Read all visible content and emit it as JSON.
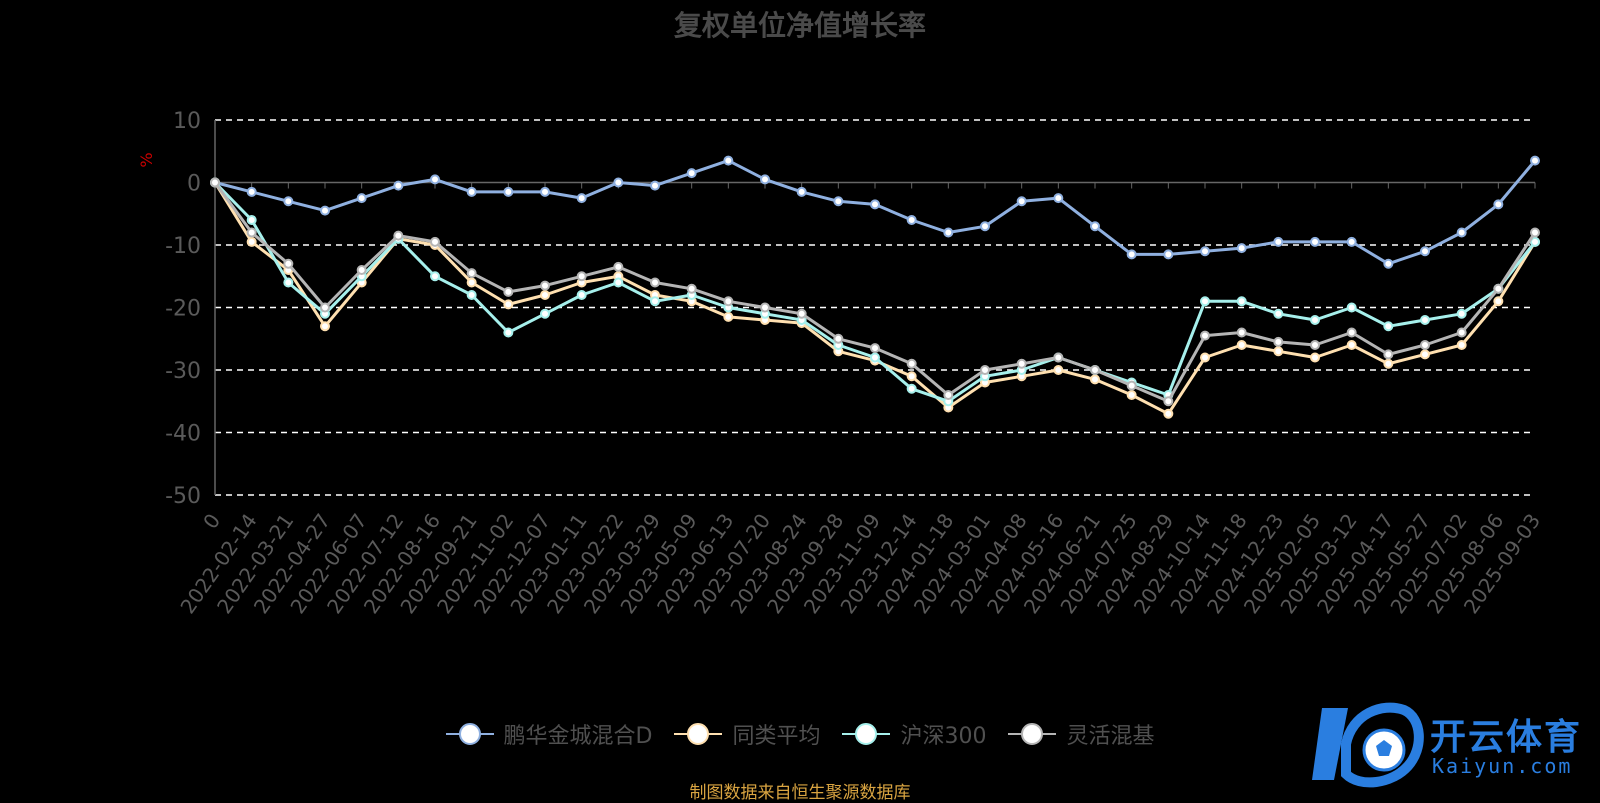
{
  "chart_data": {
    "type": "line",
    "title": "复权单位净值增长率",
    "ylabel": "%",
    "ylim": [
      -50,
      10
    ],
    "yticks": [
      10,
      0,
      -10,
      -20,
      -30,
      -40,
      -50
    ],
    "grid": true,
    "legend_position": "bottom",
    "x": [
      "0",
      "2022-02-14",
      "2022-03-21",
      "2022-04-27",
      "2022-06-07",
      "2022-07-12",
      "2022-08-16",
      "2022-09-21",
      "2022-11-02",
      "2022-12-07",
      "2023-01-11",
      "2023-02-22",
      "2023-03-29",
      "2023-05-09",
      "2023-06-13",
      "2023-07-20",
      "2023-08-24",
      "2023-09-28",
      "2023-11-09",
      "2023-12-14",
      "2024-01-18",
      "2024-03-01",
      "2024-04-08",
      "2024-05-16",
      "2024-06-21",
      "2024-07-25",
      "2024-08-29",
      "2024-10-14",
      "2024-11-18",
      "2024-12-23",
      "2025-02-05",
      "2025-03-12",
      "2025-04-17",
      "2025-05-27",
      "2025-07-02",
      "2025-08-06",
      "2025-09-03"
    ],
    "series": [
      {
        "name": "鹏华金城混合D",
        "color": "#8fb0e0",
        "values": [
          0,
          -1.5,
          -3,
          -4.5,
          -2.5,
          -0.5,
          0.5,
          -1.5,
          -1.5,
          -1.5,
          -2.5,
          0,
          -0.5,
          1.5,
          3.5,
          0.5,
          -1.5,
          -3,
          -3.5,
          -6,
          -8,
          -7,
          -3,
          -2.5,
          -7,
          -11.5,
          -11.5,
          -11,
          -10.5,
          -9.5,
          -9.5,
          -9.5,
          -13,
          -11,
          -8,
          -3.5,
          3.5
        ]
      },
      {
        "name": "同类平均",
        "color": "#ffe0b0",
        "values": [
          0,
          -9.5,
          -14,
          -23,
          -16,
          -9,
          -10,
          -16,
          -19.5,
          -18,
          -16,
          -15,
          -18,
          -19,
          -21.5,
          -22,
          -22.5,
          -27,
          -28.5,
          -31,
          -36,
          -32,
          -31,
          -30,
          -31.5,
          -34,
          -37,
          -28,
          -26,
          -27,
          -28,
          -26,
          -29,
          -27.5,
          -26,
          -19,
          -9.5
        ]
      },
      {
        "name": "沪深300",
        "color": "#a6f0ec",
        "values": [
          0,
          -6,
          -16,
          -21,
          -15,
          -9,
          -15,
          -18,
          -24,
          -21,
          -18,
          -16,
          -19,
          -18,
          -20,
          -21,
          -22,
          -26,
          -28,
          -33,
          -35,
          -31,
          -30,
          -28,
          -30,
          -32,
          -34,
          -19,
          -19,
          -21,
          -22,
          -20,
          -23,
          -22,
          -21,
          -17,
          -9.5
        ]
      },
      {
        "name": "灵活混基",
        "color": "#b5b5b5",
        "values": [
          0,
          -8,
          -13,
          -20,
          -14,
          -8.5,
          -9.5,
          -14.5,
          -17.5,
          -16.5,
          -15,
          -13.5,
          -16,
          -17,
          -19,
          -20,
          -21,
          -25,
          -26.5,
          -29,
          -34,
          -30,
          -29,
          -28,
          -30,
          -32.5,
          -35,
          -24.5,
          -24,
          -25.5,
          -26,
          -24,
          -27.5,
          -26,
          -24,
          -17,
          -8
        ]
      }
    ]
  },
  "source_note": "制图数据来自恒生聚源数据库",
  "watermark": {
    "text_cn": "开云体育",
    "text_en": "Kaiyun.com",
    "color": "#2a7ee0"
  }
}
